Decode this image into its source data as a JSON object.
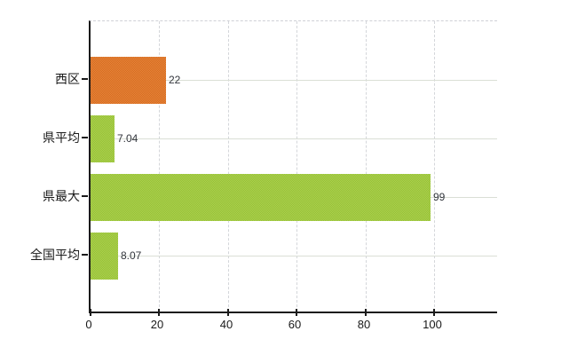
{
  "chart_data": {
    "type": "bar",
    "orientation": "horizontal",
    "title": "",
    "xlabel": "",
    "ylabel": "",
    "categories": [
      "西区",
      "県平均",
      "県最大",
      "全国平均"
    ],
    "values": [
      22,
      7.04,
      99,
      8.07
    ],
    "value_labels": [
      "22",
      "7.04",
      "99",
      "8.07"
    ],
    "bar_colors": [
      "#e2711e",
      "#9eca36",
      "#9eca36",
      "#9eca36"
    ],
    "x_tick_labels": [
      "0",
      "20",
      "40",
      "60",
      "80",
      "100"
    ],
    "x_tick_values": [
      0,
      20,
      40,
      60,
      80,
      100
    ],
    "x_axis_max": 118.9,
    "grid": true,
    "legend": false
  },
  "colors": {
    "background": "#ffffff",
    "axis": "#1a1a1a",
    "grid_vertical": "#d4d6da",
    "grid_horizontal": "#dadfd6",
    "plot_top_border": "#cfd0d6",
    "category_label": "#1a1a1a",
    "tick_label": "#1a1a1a",
    "value_label": "#33363d"
  }
}
